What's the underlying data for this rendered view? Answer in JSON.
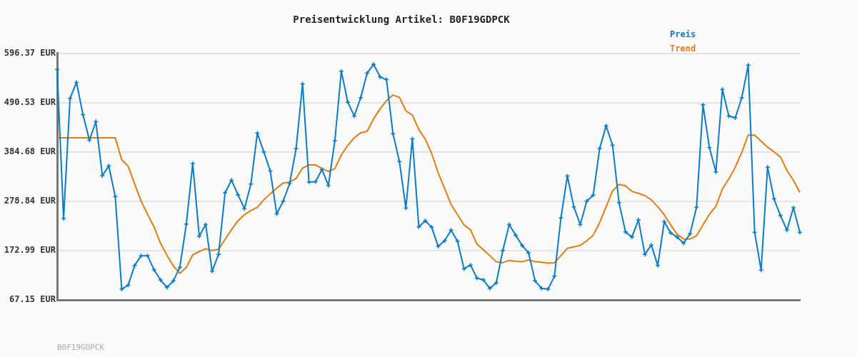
{
  "chart_data": {
    "type": "line",
    "title": "Preisentwicklung Artikel: B0F19GDPCK",
    "categories": [
      null,
      null,
      null,
      null,
      null,
      null,
      null,
      null,
      null,
      null,
      null,
      null,
      null,
      null,
      null,
      null,
      null,
      null,
      null,
      null,
      null,
      null,
      null,
      null,
      null,
      null,
      null,
      null,
      null,
      null,
      null,
      null,
      null,
      null,
      null,
      null,
      null,
      null,
      null,
      null,
      null,
      null,
      null,
      null,
      null,
      null,
      null,
      null,
      null,
      null,
      null,
      null,
      null,
      null,
      null,
      null,
      null,
      null,
      null,
      null,
      null,
      null,
      null,
      null,
      null,
      null,
      null,
      null,
      null,
      null,
      null,
      null,
      null,
      null,
      null,
      null,
      null,
      null,
      null,
      null,
      null,
      null,
      null,
      null,
      null,
      null,
      null,
      null,
      null,
      null,
      null,
      null,
      null,
      null,
      null,
      null,
      null,
      null,
      null,
      null,
      null,
      null,
      null,
      null,
      null,
      null,
      null,
      null,
      null,
      null,
      null,
      null,
      null,
      null,
      null,
      null
    ],
    "series": [
      {
        "name": "Preis",
        "color": "#0a7bc8",
        "marker": "cross",
        "values": [
          562,
          242,
          500,
          534,
          465,
          410,
          450,
          334,
          355,
          289,
          90,
          99,
          141,
          162,
          162,
          132,
          110,
          94,
          108,
          137,
          230,
          360,
          204,
          229,
          129,
          165,
          297,
          324,
          293,
          263,
          316,
          425,
          385,
          344,
          252,
          279,
          317,
          392,
          531,
          320,
          321,
          347,
          313,
          409,
          558,
          492,
          462,
          501,
          554,
          573,
          546,
          540,
          424,
          364,
          264,
          413,
          224,
          237,
          223,
          182,
          194,
          217,
          193,
          134,
          142,
          114,
          110,
          92,
          104,
          173,
          229,
          206,
          184,
          168,
          108,
          92,
          90,
          118,
          243,
          333,
          267,
          229,
          279,
          292,
          392,
          441,
          399,
          276,
          213,
          202,
          239,
          165,
          185,
          141,
          235,
          211,
          202,
          189,
          209,
          266,
          486,
          394,
          342,
          519,
          462,
          458,
          501,
          571,
          212,
          131,
          352,
          284,
          248,
          217,
          265,
          212
        ]
      },
      {
        "name": "Trend",
        "color": "#e07d10",
        "marker": "none",
        "values": [
          415,
          415,
          415,
          415,
          415,
          415,
          415,
          415,
          415,
          415,
          368,
          354,
          316,
          279,
          251,
          224,
          189,
          163,
          140,
          124,
          137,
          164,
          171,
          177,
          173,
          176,
          197,
          218,
          237,
          250,
          259,
          266,
          282,
          295,
          307,
          318,
          320,
          328,
          350,
          357,
          357,
          349,
          343,
          349,
          378,
          399,
          415,
          426,
          429,
          456,
          477,
          495,
          507,
          502,
          473,
          464,
          433,
          412,
          381,
          340,
          306,
          272,
          250,
          228,
          218,
          187,
          175,
          162,
          149,
          147,
          152,
          150,
          149,
          153,
          149,
          148,
          146,
          147,
          162,
          178,
          181,
          184,
          194,
          206,
          233,
          267,
          301,
          315,
          312,
          300,
          296,
          291,
          282,
          267,
          250,
          228,
          208,
          198,
          198,
          205,
          228,
          251,
          268,
          305,
          327,
          352,
          384,
          421,
          421,
          408,
          395,
          385,
          374,
          345,
          324,
          298
        ]
      }
    ],
    "ylim": [
      67.15,
      596.37
    ],
    "yticks": [
      {
        "value": 67.15,
        "label": "67.15 EUR"
      },
      {
        "value": 172.99,
        "label": "172.99 EUR"
      },
      {
        "value": 278.84,
        "label": "278.84 EUR"
      },
      {
        "value": 384.68,
        "label": "384.68 EUR"
      },
      {
        "value": 490.53,
        "label": "490.53 EUR"
      },
      {
        "value": 596.37,
        "label": "596.37 EUR"
      }
    ],
    "tick_labels": "y",
    "grid": "y",
    "legend": "top right",
    "line_style": "solid",
    "annotations": [
      "B0F19GDPCK"
    ]
  }
}
